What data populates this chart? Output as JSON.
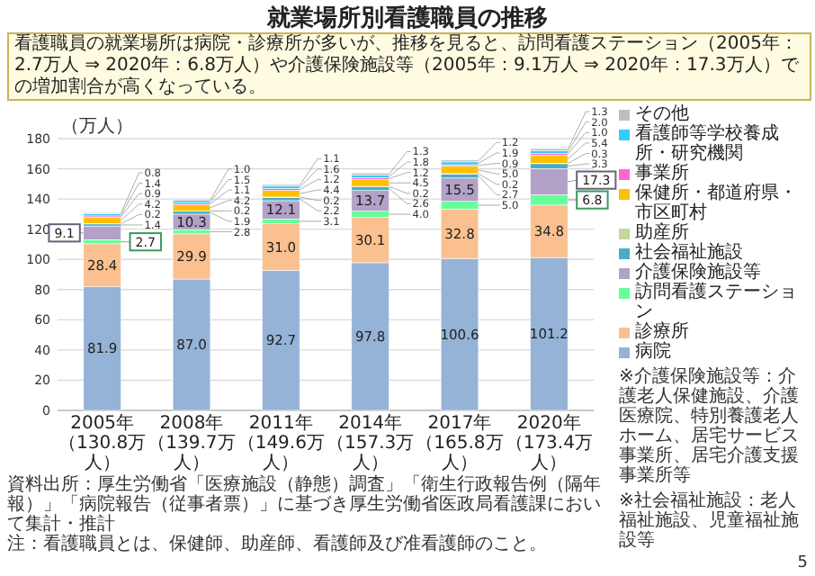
{
  "chart_data": {
    "type": "bar",
    "stacked": true,
    "title": "就業場所別看護職員の推移",
    "subtitle": "看護職員の就業場所は病院・診療所が多いが、推移を見ると、訪問看護ステーション（2005年：2.7万人 ⇒ 2020年：6.8万人）や介護保険施設等（2005年：9.1万人 ⇒ 2020年：17.3万人）での増加割合が高くなっている。",
    "ylabel": "（万人）",
    "categories": [
      "2005年（130.8万人）",
      "2008年（139.7万人）",
      "2011年（149.6万人）",
      "2014年（157.3万人）",
      "2017年（165.8万人）",
      "2020年（173.4万人）"
    ],
    "series": [
      {
        "name": "病院",
        "color": "#95b3d7",
        "values": [
          81.9,
          87.0,
          92.7,
          97.8,
          100.6,
          101.2
        ],
        "value_labels": [
          "81.9",
          "87.0",
          "92.7",
          "97.8",
          "100.6",
          "101.2"
        ]
      },
      {
        "name": "診療所",
        "color": "#fac090",
        "values": [
          28.4,
          29.9,
          31.0,
          30.1,
          32.8,
          34.8
        ],
        "value_labels": [
          "28.4",
          "29.9",
          "31.0",
          "30.1",
          "32.8",
          "34.8"
        ]
      },
      {
        "name": "訪問看護ステーション",
        "color": "#66ff99",
        "values": [
          2.7,
          2.8,
          3.1,
          4.0,
          5.0,
          6.8
        ],
        "value_labels": [
          "2.7",
          "2.8",
          "3.1",
          "4.0",
          "5.0",
          "6.8"
        ]
      },
      {
        "name": "介護保険施設等",
        "color": "#b3a2c7",
        "values": [
          9.1,
          10.3,
          12.1,
          13.7,
          15.5,
          17.3
        ],
        "value_labels": [
          "9.1",
          "10.3",
          "12.1",
          "13.7",
          "15.5",
          "17.3"
        ]
      },
      {
        "name": "社会福祉施設",
        "color": "#4bacc6",
        "values": [
          1.4,
          1.9,
          2.2,
          2.6,
          2.7,
          3.3
        ],
        "value_labels": [
          "1.4",
          "1.9",
          "2.2",
          "2.6",
          "2.7",
          "3.3"
        ]
      },
      {
        "name": "助産所",
        "color": "#c3d69b",
        "values": [
          0.2,
          0.2,
          0.2,
          0.2,
          0.2,
          0.3
        ],
        "value_labels": [
          "0.2",
          "0.2",
          "0.2",
          "0.2",
          "0.2",
          "0.3"
        ]
      },
      {
        "name": "保健所・都道府県・市区町村",
        "color": "#ffc000",
        "values": [
          4.2,
          4.2,
          4.4,
          4.5,
          5.0,
          5.4
        ],
        "value_labels": [
          "4.2",
          "4.2",
          "4.4",
          "4.5",
          "5.0",
          "5.4"
        ]
      },
      {
        "name": "事業所",
        "color": "#ff66cc",
        "values": [
          0.9,
          1.1,
          1.2,
          1.2,
          0.9,
          1.0
        ],
        "value_labels": [
          "0.9",
          "1.1",
          "1.2",
          "1.2",
          "0.9",
          "1.0"
        ]
      },
      {
        "name": "看護師等学校養成所・研究機関",
        "color": "#33ccff",
        "values": [
          1.4,
          1.5,
          1.6,
          1.8,
          1.9,
          2.0
        ],
        "value_labels": [
          "1.4",
          "1.5",
          "1.6",
          "1.8",
          "1.9",
          "2.0"
        ]
      },
      {
        "name": "その他",
        "color": "#bfbfbf",
        "values": [
          0.8,
          1.0,
          1.1,
          1.3,
          1.2,
          1.3
        ],
        "value_labels": [
          "0.8",
          "1.0",
          "1.1",
          "1.3",
          "1.2",
          "1.3"
        ]
      }
    ],
    "ylim": [
      0,
      180
    ],
    "yticks": [
      0,
      20,
      40,
      60,
      80,
      100,
      120,
      140,
      160,
      180
    ],
    "grid": "y",
    "legend": "right",
    "annotations": [
      "※介護保険施設等：介護老人保健施設、介護医療院、特別養護老人ホーム、居宅サービス事業所、居宅介護支援事業所等",
      "※社会福祉施設：老人福祉施設、児童福祉施設等",
      "資料出所：厚生労働省「医療施設（静態）調査」「衛生行政報告例（隔年報）」「病院報告（従事者票）」に基づき厚生労働省医政局看護課において集計・推計",
      "注：看護職員とは、保健師、助産師、看護師及び准看護師のこと。",
      "5"
    ]
  }
}
